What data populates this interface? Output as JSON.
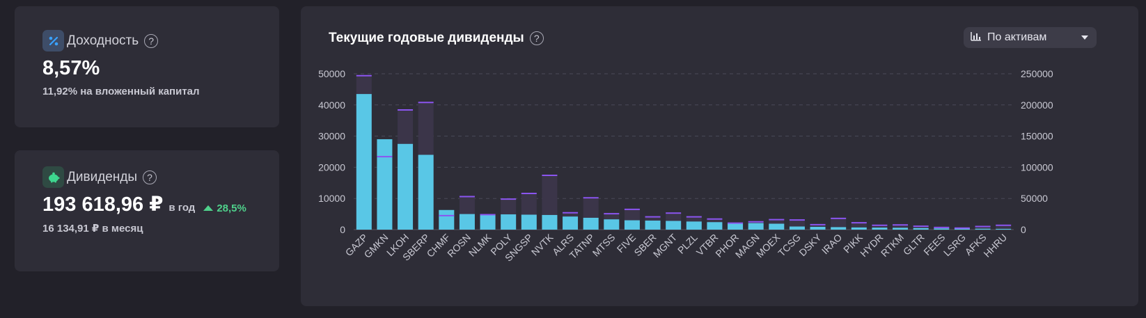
{
  "yield_card": {
    "label": "Доходность",
    "value": "8,57%",
    "sub": "11,92% на вложенный капитал",
    "icon": "percent-icon"
  },
  "dividends_card": {
    "label": "Дивиденды",
    "value": "193 618,96 ₽",
    "per_year": "в год",
    "growth": "28,5%",
    "per_month": "16 134,91 ₽ в месяц",
    "icon": "piggy-bank-icon"
  },
  "help_glyph": "?",
  "chart_card": {
    "title": "Текущие годовые дивиденды",
    "selector": "По активам",
    "selector_icon": "bar-chart-icon"
  },
  "colors": {
    "bar": "#5bd0ef",
    "bar_alt": "#5ddcf3",
    "overlay": "#3b3549",
    "marker": "#8b55f0",
    "growth": "#4fd18b"
  },
  "chart_data": {
    "type": "bar",
    "categories": [
      "GAZP",
      "GMKN",
      "LKOH",
      "SBERP",
      "CHMF",
      "ROSN",
      "NLMK",
      "POLY",
      "SNGSP",
      "NVTK",
      "ALRS",
      "TATNP",
      "MTSS",
      "FIVE",
      "SBER",
      "MGNT",
      "PLZL",
      "VTBR",
      "PHOR",
      "MAGN",
      "MOEX",
      "TCSG",
      "DSKY",
      "IRAO",
      "PIKK",
      "HYDR",
      "RTKM",
      "GLTR",
      "FEES",
      "LSRG",
      "AFKS",
      "HHRU"
    ],
    "series": [
      {
        "axis": "left",
        "values": [
          43500,
          29000,
          27500,
          24000,
          6300,
          5000,
          5000,
          4900,
          4800,
          4700,
          4200,
          3800,
          3300,
          3000,
          2900,
          2800,
          2600,
          2400,
          2200,
          2100,
          1900,
          1000,
          900,
          800,
          700,
          650,
          600,
          500,
          400,
          350,
          300,
          250
        ]
      },
      {
        "axis": "right",
        "values": [
          247000,
          117000,
          192000,
          204000,
          22500,
          53000,
          24000,
          49000,
          58000,
          87000,
          27000,
          51000,
          25500,
          32500,
          20500,
          26500,
          20500,
          17000,
          10500,
          12500,
          16000,
          15500,
          8000,
          18000,
          11000,
          7000,
          7500,
          5500,
          3500,
          2500,
          5000,
          7000
        ]
      }
    ],
    "ylim": [
      0,
      50000
    ],
    "y2lim": [
      0,
      250000
    ],
    "yticks": [
      0,
      10000,
      20000,
      30000,
      40000,
      50000
    ],
    "y2ticks": [
      0,
      50000,
      100000,
      150000,
      200000,
      250000
    ],
    "grid": true
  }
}
